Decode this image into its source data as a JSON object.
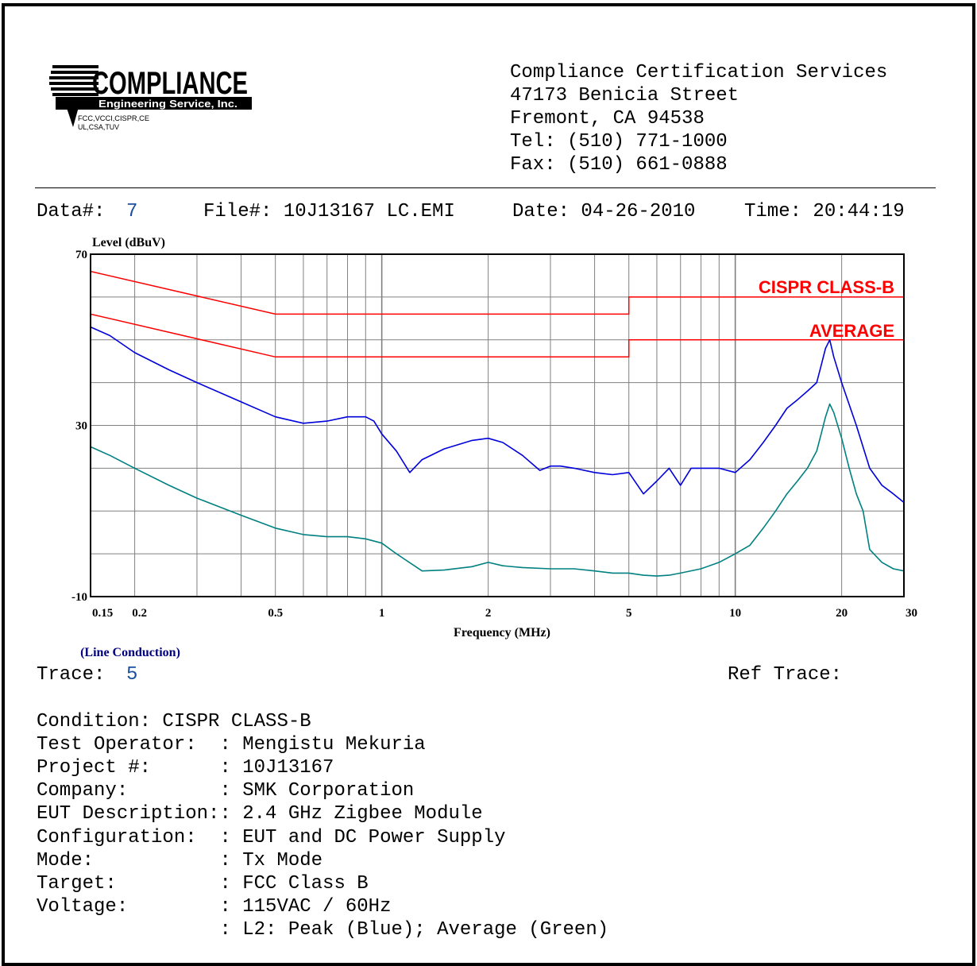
{
  "header": {
    "logo": {
      "name": "COMPLIANCE",
      "subtitle": "Engineering Service, Inc.",
      "line1": "FCC,VCCI,CISPR,CE",
      "line2": "UL,CSA,TUV"
    },
    "address_lines": [
      "Compliance Certification Services",
      "47173 Benicia Street",
      "Fremont, CA 94538",
      "Tel: (510) 771-1000",
      "Fax: (510) 661-0888"
    ]
  },
  "info_bar": {
    "data_label": "Data#:",
    "data_value": "7",
    "file": "File#: 10J13167 LC.EMI",
    "date": "Date: 04-26-2010",
    "time": "Time: 20:44:19"
  },
  "colors": {
    "peak": "#0000dd",
    "average": "#008080",
    "limit": "#ff0000",
    "grid": "#808080",
    "label_blue": "#000080",
    "value_blue": "#1a4fa0"
  },
  "chart_data": {
    "type": "line",
    "x_scale": "log",
    "ylabel": "Level (dBuV)",
    "xlabel": "Frequency (MHz)",
    "xlim": [
      0.15,
      30
    ],
    "ylim": [
      -10,
      70
    ],
    "x_ticks": [
      {
        "value": 0.15,
        "label": "0.15"
      },
      {
        "value": 0.2,
        "label": "0.2"
      },
      {
        "value": 0.5,
        "label": "0.5"
      },
      {
        "value": 1,
        "label": "1"
      },
      {
        "value": 2,
        "label": "2"
      },
      {
        "value": 5,
        "label": "5"
      },
      {
        "value": 10,
        "label": "10"
      },
      {
        "value": 20,
        "label": "20"
      },
      {
        "value": 30,
        "label": "30"
      }
    ],
    "y_ticks": [
      {
        "value": 70,
        "label": "70"
      },
      {
        "value": 30,
        "label": "30"
      },
      {
        "value": -10,
        "label": "-10"
      }
    ],
    "grid": true,
    "annotations": [
      "CISPR CLASS-B",
      "AVERAGE"
    ],
    "caption": "(Line Conduction)",
    "limits": [
      {
        "label": "CISPR CLASS-B",
        "x": [
          0.15,
          0.5,
          0.5,
          5,
          5,
          30
        ],
        "y": [
          66,
          56,
          56,
          56,
          60,
          60
        ]
      },
      {
        "label": "AVERAGE",
        "x": [
          0.15,
          0.5,
          0.5,
          5,
          5,
          30
        ],
        "y": [
          56,
          46,
          46,
          46,
          50,
          50
        ]
      }
    ],
    "series": [
      {
        "legend": "Peak (Blue)",
        "x": [
          0.15,
          0.17,
          0.2,
          0.25,
          0.3,
          0.4,
          0.5,
          0.6,
          0.7,
          0.8,
          0.9,
          0.95,
          1.0,
          1.1,
          1.2,
          1.3,
          1.5,
          1.8,
          2.0,
          2.2,
          2.5,
          2.8,
          3.0,
          3.2,
          3.5,
          4.0,
          4.5,
          5.0,
          5.5,
          6.0,
          6.5,
          7.0,
          7.5,
          8.0,
          9.0,
          10.0,
          11.0,
          12.0,
          13.0,
          14.0,
          15.0,
          16.0,
          17.0,
          17.5,
          18.0,
          18.5,
          19.0,
          20.0,
          22.0,
          24.0,
          26.0,
          28.0,
          30.0
        ],
        "y": [
          53,
          51,
          47,
          43,
          40,
          35.5,
          32,
          30.5,
          31,
          32,
          32,
          31,
          28,
          24,
          19,
          22,
          24.5,
          26.5,
          27,
          26,
          23,
          19.5,
          20.5,
          20.5,
          20,
          19,
          18.5,
          19,
          14,
          17,
          20,
          16,
          20,
          20,
          20,
          19,
          22,
          26,
          30,
          34,
          36,
          38,
          40,
          44,
          48,
          50,
          46,
          40,
          30,
          20,
          16,
          14,
          12
        ]
      },
      {
        "legend": "Average (Green)",
        "x": [
          0.15,
          0.17,
          0.2,
          0.25,
          0.3,
          0.4,
          0.5,
          0.6,
          0.7,
          0.8,
          0.9,
          1.0,
          1.1,
          1.3,
          1.5,
          1.8,
          2.0,
          2.2,
          2.5,
          3.0,
          3.5,
          4.0,
          4.5,
          5.0,
          5.5,
          6.0,
          6.5,
          7.0,
          8.0,
          9.0,
          10.0,
          11.0,
          12.0,
          13.0,
          14.0,
          15.0,
          16.0,
          17.0,
          17.5,
          18.0,
          18.5,
          19.0,
          20.0,
          21.0,
          22.0,
          23.0,
          24.0,
          26.0,
          28.0,
          30.0
        ],
        "y": [
          25,
          23,
          20,
          16,
          13,
          9,
          6,
          4.5,
          4,
          4,
          3.5,
          2.5,
          0,
          -4,
          -3.8,
          -3,
          -2,
          -2.8,
          -3.2,
          -3.5,
          -3.5,
          -4,
          -4.5,
          -4.5,
          -5,
          -5.2,
          -5,
          -4.5,
          -3.5,
          -2,
          0,
          2,
          6,
          10,
          14,
          17,
          20,
          24,
          28,
          32,
          35,
          33,
          27,
          20,
          14,
          10,
          1,
          -2,
          -3.5,
          -4
        ]
      }
    ]
  },
  "details": {
    "trace_label": "Trace:",
    "trace_value": "5",
    "ref_trace": "Ref Trace:",
    "lines": [
      "Condition: CISPR CLASS-B",
      "Test Operator:  : Mengistu Mekuria",
      "Project #:      : 10J13167",
      "Company:        : SMK Corporation",
      "EUT Description:: 2.4 GHz Zigbee Module",
      "Configuration:  : EUT and DC Power Supply",
      "Mode:           : Tx Mode",
      "Target:         : FCC Class B",
      "Voltage:        : 115VAC / 60Hz",
      "                : L2: Peak (Blue); Average (Green)"
    ]
  }
}
